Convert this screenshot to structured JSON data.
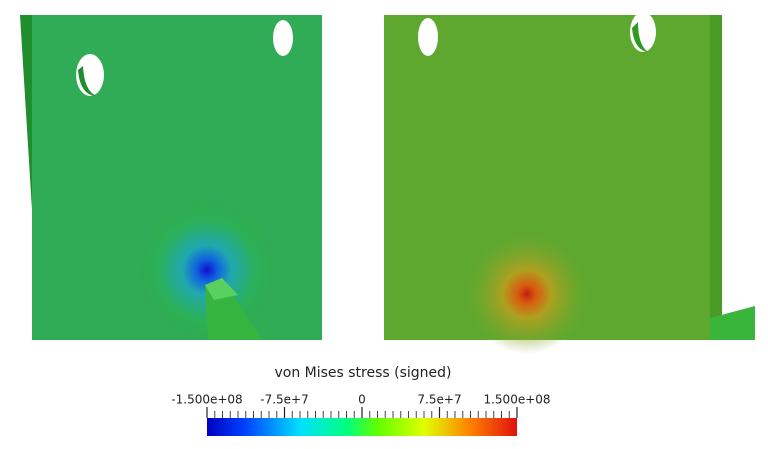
{
  "colorbar": {
    "title": "von Mises stress (signed)",
    "lim": [
      -150000000,
      150000000
    ],
    "ticks": [
      {
        "value": -150000000,
        "label": "-1.500e+08"
      },
      {
        "value": -75000000,
        "label": "-7.5e+7"
      },
      0,
      {
        "value": 75000000,
        "label": "7.5e+7"
      },
      {
        "value": 150000000,
        "label": "1.500e+08"
      }
    ]
  }
}
